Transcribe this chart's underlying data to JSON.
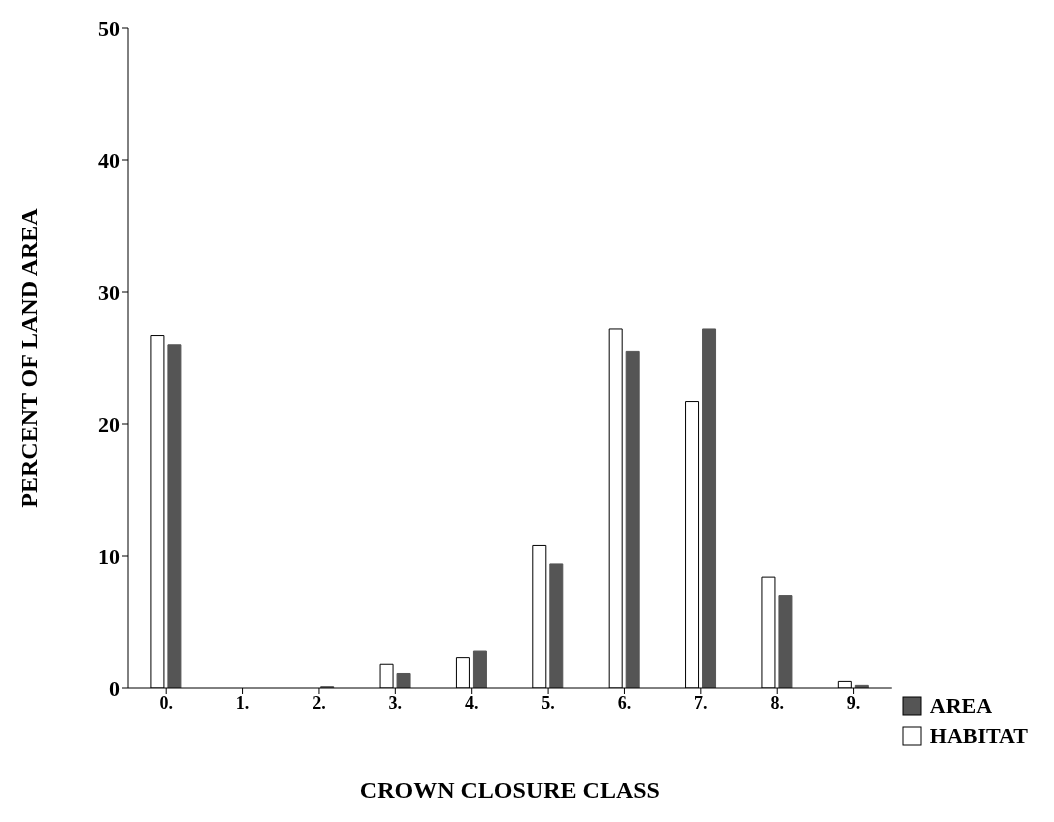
{
  "chart_data": {
    "type": "bar",
    "xlabel": "CROWN CLOSURE CLASS",
    "ylabel": "PERCENT OF LAND AREA",
    "categories": [
      "0.",
      "1.",
      "2.",
      "3.",
      "4.",
      "5.",
      "6.",
      "7.",
      "8.",
      "9."
    ],
    "series": [
      {
        "name": "HABITAT",
        "color": "#ffffff",
        "values": [
          26.7,
          0,
          0,
          1.8,
          2.3,
          10.8,
          27.2,
          21.7,
          8.4,
          0.5
        ]
      },
      {
        "name": "AREA",
        "color": "#555555",
        "values": [
          26.0,
          0,
          0.1,
          1.1,
          2.8,
          9.4,
          25.5,
          27.2,
          7.0,
          0.2
        ]
      }
    ],
    "ylim": [
      0,
      50
    ],
    "yticks": [
      0,
      10,
      20,
      30,
      40,
      50
    ],
    "grid": false,
    "legend": "bottom right"
  }
}
